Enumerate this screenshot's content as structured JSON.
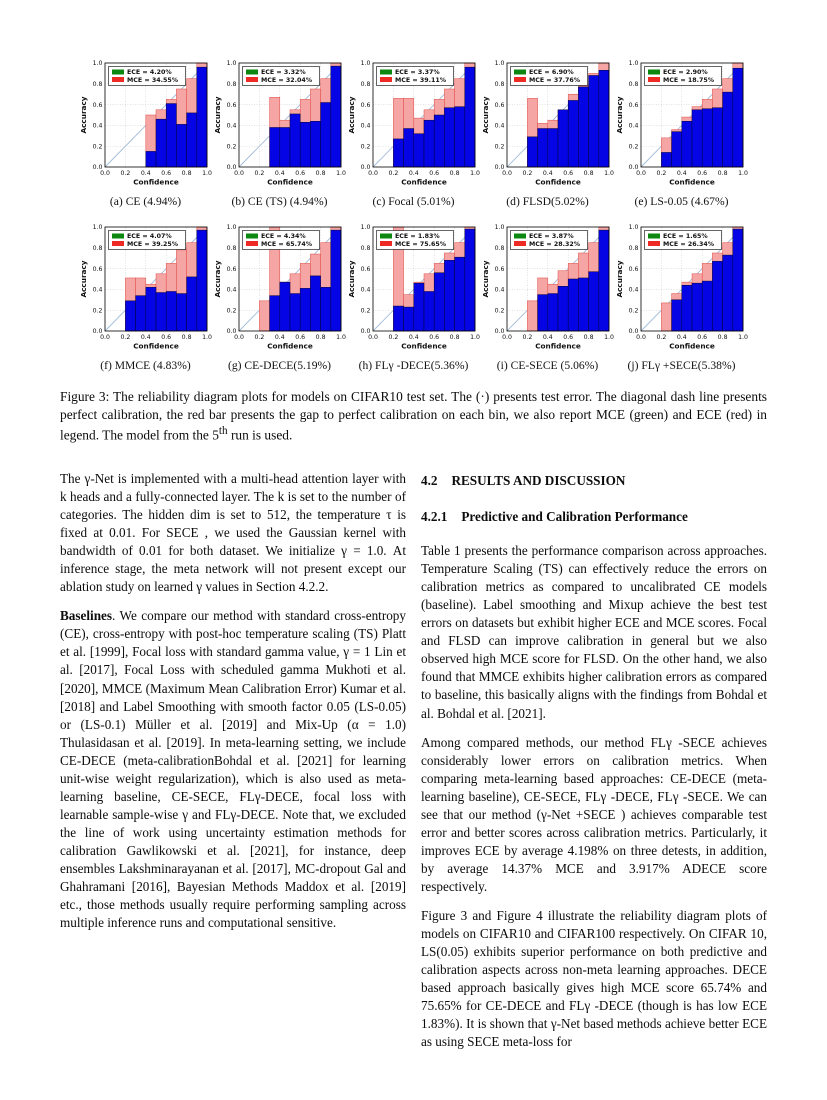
{
  "colors": {
    "accuracy_bar": "#0404e4",
    "accuracy_edge": "#04043a",
    "gap_bar": "#f5a5a3",
    "gap_edge": "#df4a44",
    "ece_swatch": "#0c870f",
    "mce_swatch": "#ee2a24",
    "diagonal": "#a3bcd9",
    "grid": "#c0c0c0",
    "axis": "#000000"
  },
  "figure": {
    "caption_part1": "Figure 3: The reliability diagram plots for models on CIFAR10 test set. The (·) presents test error. The diagonal dash line presents perfect calibration, the red bar presents the gap to perfect calibration on each bin, we also report MCE (green) and ECE (red) in legend. The model from the 5",
    "caption_sup": "th",
    "caption_part2": " run is used.",
    "axis": {
      "xlabel": "Confidence",
      "ylabel": "Accuracy",
      "ticks": [
        "0.0",
        "0.2",
        "0.4",
        "0.6",
        "0.8",
        "1.0"
      ]
    }
  },
  "chart_data": [
    {
      "type": "bar",
      "label": "(a)",
      "title": "CE (4.94%)",
      "legend": {
        "ece": "ECE = 4.20%",
        "mce": "MCE = 34.55%"
      },
      "xlabel": "Confidence",
      "ylabel": "Accuracy",
      "xlim": [
        0,
        1
      ],
      "ylim": [
        0,
        1
      ],
      "bin_start": 0.4,
      "bin_width": 0.1,
      "accuracy": [
        0.15,
        0.46,
        0.61,
        0.41,
        0.52,
        0.96
      ],
      "gap_top": [
        0.5,
        0.55,
        0.65,
        0.75,
        0.85,
        1.0
      ]
    },
    {
      "type": "bar",
      "label": "(b)",
      "title": "CE (TS) (4.94%)",
      "legend": {
        "ece": "ECE = 3.32%",
        "mce": "MCE = 32.04%"
      },
      "xlabel": "Confidence",
      "ylabel": "Accuracy",
      "xlim": [
        0,
        1
      ],
      "ylim": [
        0,
        1
      ],
      "bin_start": 0.3,
      "bin_width": 0.1,
      "accuracy": [
        0.38,
        0.38,
        0.51,
        0.43,
        0.44,
        0.62,
        0.97
      ],
      "gap_top": [
        0.67,
        0.45,
        0.55,
        0.65,
        0.75,
        0.85,
        1.0
      ]
    },
    {
      "type": "bar",
      "label": "(c)",
      "title": "Focal (5.01%)",
      "legend": {
        "ece": "ECE = 3.37%",
        "mce": "MCE = 39.11%"
      },
      "xlabel": "Confidence",
      "ylabel": "Accuracy",
      "xlim": [
        0,
        1
      ],
      "ylim": [
        0,
        1
      ],
      "bin_start": 0.2,
      "bin_width": 0.1,
      "accuracy": [
        0.27,
        0.37,
        0.32,
        0.45,
        0.5,
        0.57,
        0.58,
        0.96
      ],
      "gap_top": [
        0.66,
        0.66,
        0.47,
        0.55,
        0.65,
        0.75,
        0.85,
        1.0
      ]
    },
    {
      "type": "bar",
      "label": "(d)",
      "title": "FLSD(5.02%)",
      "legend": {
        "ece": "ECE = 6.90%",
        "mce": "MCE = 37.76%"
      },
      "xlabel": "Confidence",
      "ylabel": "Accuracy",
      "xlim": [
        0,
        1
      ],
      "ylim": [
        0,
        1
      ],
      "bin_start": 0.2,
      "bin_width": 0.1,
      "accuracy": [
        0.29,
        0.37,
        0.37,
        0.55,
        0.64,
        0.77,
        0.88,
        0.93
      ],
      "gap_top": [
        0.66,
        0.42,
        0.45,
        0.55,
        0.7,
        0.78,
        0.9,
        1.0
      ]
    },
    {
      "type": "bar",
      "label": "(e)",
      "title": "LS-0.05 (4.67%)",
      "legend": {
        "ece": "ECE = 2.90%",
        "mce": "MCE = 18.75%"
      },
      "xlabel": "Confidence",
      "ylabel": "Accuracy",
      "xlim": [
        0,
        1
      ],
      "ylim": [
        0,
        1
      ],
      "bin_start": 0.2,
      "bin_width": 0.1,
      "accuracy": [
        0.14,
        0.34,
        0.44,
        0.55,
        0.56,
        0.57,
        0.72,
        0.95
      ],
      "gap_top": [
        0.28,
        0.36,
        0.48,
        0.58,
        0.65,
        0.75,
        0.85,
        1.0
      ]
    },
    {
      "type": "bar",
      "label": "(f)",
      "title": "MMCE (4.83%)",
      "legend": {
        "ece": "ECE = 4.07%",
        "mce": "MCE = 39.25%"
      },
      "xlabel": "Confidence",
      "ylabel": "Accuracy",
      "xlim": [
        0,
        1
      ],
      "ylim": [
        0,
        1
      ],
      "bin_start": 0.2,
      "bin_width": 0.1,
      "accuracy": [
        0.29,
        0.34,
        0.42,
        0.37,
        0.38,
        0.36,
        0.52,
        0.97
      ],
      "gap_top": [
        0.51,
        0.51,
        0.45,
        0.55,
        0.65,
        0.78,
        0.85,
        1.0
      ]
    },
    {
      "type": "bar",
      "label": "(g)",
      "title": "CE-DECE(5.19%)",
      "legend": {
        "ece": "ECE = 4.34%",
        "mce": "MCE = 65.74%"
      },
      "xlabel": "Confidence",
      "ylabel": "Accuracy",
      "xlim": [
        0,
        1
      ],
      "ylim": [
        0,
        1
      ],
      "bin_start": 0.2,
      "bin_width": 0.1,
      "accuracy": [
        0.0,
        0.34,
        0.47,
        0.36,
        0.41,
        0.53,
        0.42,
        0.97
      ],
      "gap_top": [
        0.29,
        1.0,
        0.47,
        0.55,
        0.65,
        0.74,
        0.85,
        1.0
      ]
    },
    {
      "type": "bar",
      "label": "(h)",
      "title": "FLγ -DECE(5.36%)",
      "legend": {
        "ece": "ECE = 1.83%",
        "mce": "MCE = 75.65%"
      },
      "xlabel": "Confidence",
      "ylabel": "Accuracy",
      "xlim": [
        0,
        1
      ],
      "ylim": [
        0,
        1
      ],
      "bin_start": 0.2,
      "bin_width": 0.1,
      "accuracy": [
        0.24,
        0.23,
        0.46,
        0.38,
        0.56,
        0.68,
        0.71,
        0.98
      ],
      "gap_top": [
        1.0,
        0.35,
        0.47,
        0.55,
        0.65,
        0.75,
        0.85,
        1.0
      ]
    },
    {
      "type": "bar",
      "label": "(i)",
      "title": "CE-SECE (5.06%)",
      "legend": {
        "ece": "ECE = 3.87%",
        "mce": "MCE = 28.32%"
      },
      "xlabel": "Confidence",
      "ylabel": "Accuracy",
      "xlim": [
        0,
        1
      ],
      "ylim": [
        0,
        1
      ],
      "bin_start": 0.2,
      "bin_width": 0.1,
      "accuracy": [
        0.0,
        0.35,
        0.36,
        0.43,
        0.5,
        0.51,
        0.57,
        0.97
      ],
      "gap_top": [
        0.29,
        0.51,
        0.45,
        0.58,
        0.65,
        0.75,
        0.85,
        1.0
      ]
    },
    {
      "type": "bar",
      "label": "(j)",
      "title": "FLγ +SECE(5.38%)",
      "legend": {
        "ece": "ECE = 1.65%",
        "mce": "MCE = 26.34%"
      },
      "xlabel": "Confidence",
      "ylabel": "Accuracy",
      "xlim": [
        0,
        1
      ],
      "ylim": [
        0,
        1
      ],
      "bin_start": 0.2,
      "bin_width": 0.1,
      "accuracy": [
        0.0,
        0.3,
        0.44,
        0.46,
        0.48,
        0.67,
        0.73,
        0.98
      ],
      "gap_top": [
        0.27,
        0.36,
        0.47,
        0.55,
        0.65,
        0.75,
        0.85,
        1.0
      ]
    }
  ],
  "left_column": {
    "p1": "The γ-Net is implemented with a multi-head attention layer with k heads and a fully-connected layer. The k is set to the number of categories. The hidden dim is set to 512, the temperature τ is fixed at 0.01. For SECE , we used the Gaussian kernel with bandwidth of 0.01 for both dataset. We initialize γ = 1.0. At inference stage, the meta network will not present except our ablation study on learned γ values in Section 4.2.2.",
    "p2_lead": "Baselines",
    "p2_text": ". We compare our method with standard cross-entropy (CE), cross-entropy with post-hoc temperature scaling (TS) Platt et al. [1999], Focal loss with standard gamma value, γ = 1 Lin et al. [2017], Focal Loss with scheduled gamma Mukhoti et al. [2020], MMCE (Maximum Mean Calibration Error) Kumar et al. [2018] and Label Smoothing with smooth factor 0.05 (LS-0.05) or (LS-0.1) Müller et al. [2019] and Mix-Up (α = 1.0) Thulasidasan et al. [2019]. In meta-learning setting, we include CE-DECE (meta-calibrationBohdal et al. [2021] for learning unit-wise weight regularization), which is also used as meta-learning baseline, CE-SECE, FLγ-DECE, focal loss with learnable sample-wise γ and FLγ-DECE. Note that, we excluded the line of work using uncertainty estimation methods for calibration Gawlikowski et al. [2021], for instance, deep ensembles Lakshminarayanan et al. [2017], MC-dropout Gal and Ghahramani [2016], Bayesian Methods  Maddox et al. [2019] etc., those methods usually require performing sampling across multiple inference runs and computational sensitive."
  },
  "right_column": {
    "h1_num": "4.2",
    "h1_title": "RESULTS AND DISCUSSION",
    "h2_num": "4.2.1",
    "h2_title": "Predictive and Calibration Performance",
    "p1": "Table 1 presents the performance comparison across approaches. Temperature Scaling (TS) can effectively reduce the errors on calibration metrics as compared to uncalibrated CE models (baseline). Label smoothing and Mixup achieve the best test errors on datasets but exhibit higher ECE and MCE scores. Focal and FLSD can improve calibration in general but we also observed high MCE score for FLSD. On the other hand, we also found that MMCE exhibits higher calibration errors as compared to baseline, this basically aligns with the findings from Bohdal et al. Bohdal et al. [2021].",
    "p2": "Among compared methods, our method FLγ -SECE achieves considerably lower errors on calibration metrics. When comparing meta-learning based approaches: CE-DECE (meta-learning baseline), CE-SECE, FLγ -DECE, FLγ -SECE. We can see that our method (γ-Net +SECE ) achieves comparable test error and better scores across calibration metrics. Particularly, it improves ECE by average  4.198% on three detests, in addition, by average 14.37% MCE and  3.917% ADECE score respectively.",
    "p3": "Figure  3 and Figure  4 illustrate the reliability diagram plots of models on CIFAR10 and CIFAR100 respectively. On CIFAR 10, LS(0.05) exhibits superior performance on both predictive and calibration aspects across non-meta learning approaches. DECE based approach basically gives high MCE score 65.74% and 75.65% for CE-DECE and FLγ -DECE (though is has low ECE 1.83%). It is shown that γ-Net based methods achieve better ECE as using SECE meta-loss for"
  }
}
